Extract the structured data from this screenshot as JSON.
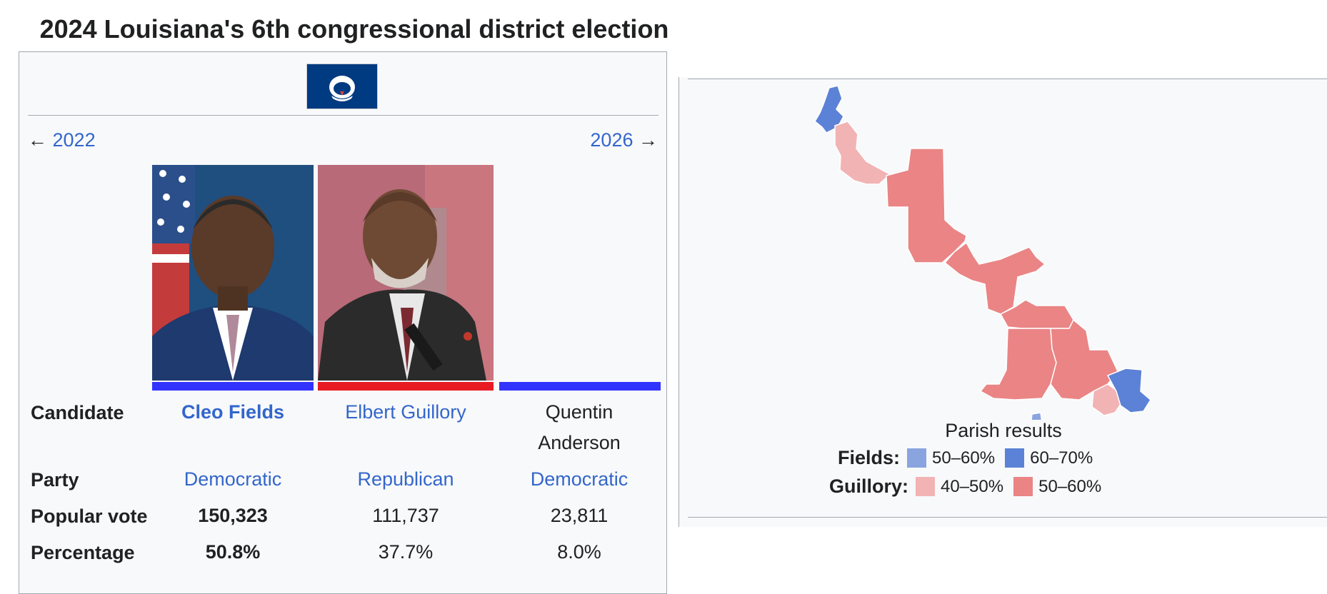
{
  "title": "2024 Louisiana's 6th congressional district election",
  "nav": {
    "prev_arrow": "←",
    "prev_year": "2022",
    "next_year": "2026",
    "next_arrow": "→"
  },
  "row_labels": {
    "candidate": "Candidate",
    "party": "Party",
    "popular_vote": "Popular vote",
    "percentage": "Percentage"
  },
  "candidates": [
    {
      "name": "Cleo Fields",
      "party": "Democratic",
      "votes": "150,323",
      "percentage": "50.8%",
      "party_color": "#3333ff",
      "winner": true
    },
    {
      "name": "Elbert Guillory",
      "party": "Republican",
      "votes": "111,737",
      "percentage": "37.7%",
      "party_color": "#e81b23",
      "winner": false
    },
    {
      "name_line1": "Quentin",
      "name_line2": "Anderson",
      "party": "Democratic",
      "votes": "23,811",
      "percentage": "8.0%",
      "party_color": "#3333ff",
      "winner": false
    }
  ],
  "map": {
    "caption": "Parish results",
    "legend": [
      {
        "label": "Fields:",
        "items": [
          {
            "range": "50–60%",
            "color": "#8aa4e0"
          },
          {
            "range": "60–70%",
            "color": "#5b82d6"
          }
        ]
      },
      {
        "label": "Guillory:",
        "items": [
          {
            "range": "40–50%",
            "color": "#f2b3b4"
          },
          {
            "range": "50–60%",
            "color": "#ea8485"
          }
        ]
      }
    ]
  },
  "colors": {
    "link": "#3366cc",
    "democratic": "#3333ff",
    "republican": "#e81b23",
    "flag_blue": "#003a80"
  }
}
